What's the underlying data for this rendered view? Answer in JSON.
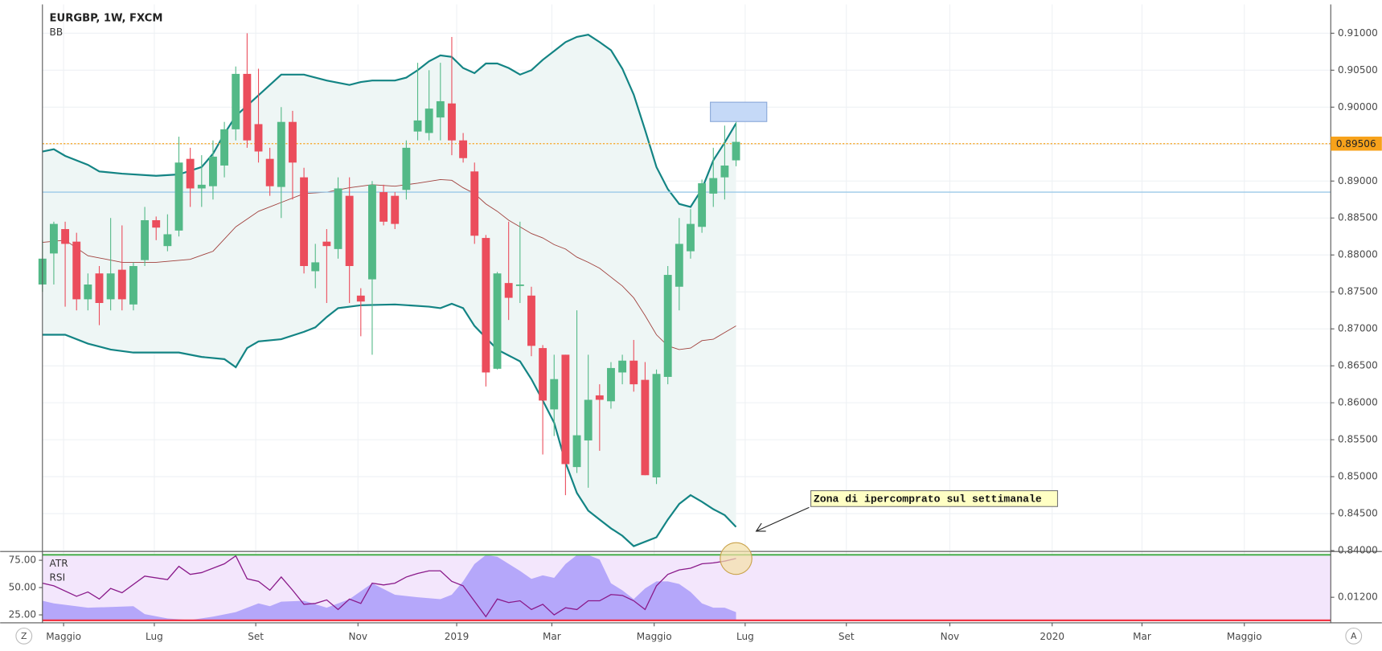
{
  "chart_data": [
    {
      "type": "candlestick",
      "title": "EURGBP, 1W, FXCM",
      "indicator_label": "BB",
      "x": [
        0,
        1,
        2,
        3,
        4,
        5,
        6,
        7,
        8,
        9,
        10,
        11,
        12,
        13,
        14,
        15,
        16,
        17,
        18,
        19,
        20,
        21,
        22,
        23,
        24,
        25,
        26,
        27,
        28,
        29,
        30,
        31,
        32,
        33,
        34,
        35,
        36,
        37,
        38,
        39,
        40,
        41,
        42,
        43,
        44,
        45,
        46,
        47,
        48,
        49,
        50,
        51,
        52,
        53,
        54,
        55,
        56,
        57,
        58,
        59,
        60,
        61
      ],
      "open": [
        0.876,
        0.8802,
        0.8835,
        0.8818,
        0.874,
        0.8775,
        0.874,
        0.878,
        0.8733,
        0.8793,
        0.8847,
        0.8812,
        0.8833,
        0.893,
        0.889,
        0.8893,
        0.8921,
        0.897,
        0.9045,
        0.8977,
        0.893,
        0.8892,
        0.898,
        0.8905,
        0.8778,
        0.8818,
        0.8808,
        0.888,
        0.8745,
        0.8767,
        0.8885,
        0.888,
        0.8888,
        0.8967,
        0.8965,
        0.8986,
        0.9005,
        0.8955,
        0.8913,
        0.8823,
        0.8646,
        0.8762,
        0.8758,
        0.8745,
        0.8674,
        0.8591,
        0.8665,
        0.8513,
        0.8549,
        0.861,
        0.8602,
        0.8641,
        0.8657,
        0.8631,
        0.8499,
        0.8635,
        0.8757,
        0.8805,
        0.8838,
        0.8883,
        0.8905,
        0.8928
      ],
      "high": [
        0.882,
        0.8845,
        0.8845,
        0.883,
        0.8775,
        0.8785,
        0.885,
        0.884,
        0.879,
        0.8865,
        0.8852,
        0.8855,
        0.896,
        0.8945,
        0.8935,
        0.8955,
        0.898,
        0.9055,
        0.91,
        0.9052,
        0.8945,
        0.9,
        0.8995,
        0.8918,
        0.8815,
        0.8835,
        0.8905,
        0.8905,
        0.8755,
        0.89,
        0.8895,
        0.8885,
        0.8955,
        0.906,
        0.905,
        0.906,
        0.9095,
        0.8965,
        0.8925,
        0.8827,
        0.8777,
        0.8845,
        0.8845,
        0.8757,
        0.8678,
        0.8665,
        0.8665,
        0.8725,
        0.8665,
        0.8625,
        0.8655,
        0.8665,
        0.8685,
        0.8655,
        0.8645,
        0.8785,
        0.885,
        0.8862,
        0.8902,
        0.8945,
        0.8975,
        0.8985
      ],
      "low": [
        0.875,
        0.876,
        0.873,
        0.8725,
        0.8725,
        0.8705,
        0.8725,
        0.8725,
        0.8725,
        0.8785,
        0.882,
        0.8805,
        0.8825,
        0.8865,
        0.8865,
        0.8875,
        0.8905,
        0.8955,
        0.8945,
        0.8925,
        0.888,
        0.885,
        0.8875,
        0.8775,
        0.8755,
        0.8735,
        0.8795,
        0.8735,
        0.869,
        0.8665,
        0.884,
        0.8835,
        0.8875,
        0.8955,
        0.8955,
        0.8955,
        0.8935,
        0.8925,
        0.8815,
        0.8622,
        0.8645,
        0.8712,
        0.8735,
        0.8663,
        0.853,
        0.8555,
        0.8475,
        0.8505,
        0.8485,
        0.8535,
        0.8592,
        0.8625,
        0.8615,
        0.8502,
        0.849,
        0.8625,
        0.8725,
        0.8795,
        0.883,
        0.8865,
        0.8875,
        0.892
      ],
      "close": [
        0.8795,
        0.8842,
        0.8815,
        0.874,
        0.876,
        0.8735,
        0.8775,
        0.874,
        0.8785,
        0.8847,
        0.8837,
        0.8828,
        0.8925,
        0.889,
        0.8895,
        0.8933,
        0.897,
        0.9045,
        0.8955,
        0.894,
        0.8893,
        0.898,
        0.8925,
        0.8785,
        0.879,
        0.8812,
        0.889,
        0.8785,
        0.8737,
        0.8895,
        0.8845,
        0.8842,
        0.8945,
        0.8982,
        0.8998,
        0.9008,
        0.8955,
        0.8931,
        0.8826,
        0.8641,
        0.8775,
        0.8742,
        0.876,
        0.8677,
        0.8603,
        0.8632,
        0.8517,
        0.8556,
        0.8604,
        0.8604,
        0.8647,
        0.8657,
        0.8625,
        0.8502,
        0.8639,
        0.8773,
        0.8815,
        0.8842,
        0.8897,
        0.8904,
        0.8921,
        0.8953
      ],
      "up_color": "#53b987",
      "down_color": "#eb4d5c",
      "bands": {
        "color": "#138484",
        "fill": "#eef6f5",
        "middle_color": "#a0403c",
        "upper": {
          "x": [
            0,
            1,
            2,
            4,
            5,
            7,
            10,
            12,
            14,
            15,
            16,
            17,
            18,
            19,
            20,
            21,
            23,
            25,
            26,
            27,
            28,
            29,
            31,
            32,
            33,
            34,
            35,
            36,
            37,
            38,
            39,
            40,
            41,
            42,
            43,
            44,
            45,
            46,
            47,
            48,
            49,
            50,
            51,
            52,
            53,
            54,
            55,
            56,
            57,
            58,
            59,
            60,
            61
          ],
          "values": [
            0.894,
            0.8943,
            0.8934,
            0.8922,
            0.8913,
            0.891,
            0.8907,
            0.8909,
            0.8919,
            0.8937,
            0.8964,
            0.8988,
            0.9002,
            0.9016,
            0.903,
            0.9044,
            0.9044,
            0.9036,
            0.9033,
            0.903,
            0.9034,
            0.9036,
            0.9036,
            0.904,
            0.905,
            0.9062,
            0.907,
            0.9068,
            0.9053,
            0.9046,
            0.9059,
            0.9059,
            0.9053,
            0.9044,
            0.905,
            0.9064,
            0.9076,
            0.9088,
            0.9095,
            0.9098,
            0.9088,
            0.9077,
            0.9052,
            0.9017,
            0.8969,
            0.8919,
            0.8889,
            0.8869,
            0.8865,
            0.8889,
            0.8928,
            0.8952,
            0.8978
          ]
        },
        "middle": {
          "x": [
            0,
            2,
            4,
            7,
            10,
            13,
            15,
            17,
            19,
            21,
            23,
            25,
            27,
            29,
            31,
            33,
            35,
            36,
            37,
            38,
            39,
            40,
            41,
            42,
            43,
            44,
            45,
            46,
            47,
            48,
            49,
            50,
            51,
            52,
            53,
            54,
            55,
            56,
            57,
            58,
            59,
            60,
            61
          ],
          "values": [
            0.8817,
            0.882,
            0.8799,
            0.879,
            0.879,
            0.8794,
            0.8805,
            0.8838,
            0.8859,
            0.8871,
            0.8883,
            0.8885,
            0.8891,
            0.8895,
            0.8893,
            0.8897,
            0.8902,
            0.8901,
            0.8891,
            0.8883,
            0.8869,
            0.8859,
            0.8847,
            0.8838,
            0.8829,
            0.8823,
            0.8814,
            0.8808,
            0.8797,
            0.879,
            0.8782,
            0.877,
            0.8758,
            0.8742,
            0.8718,
            0.8692,
            0.8677,
            0.8672,
            0.8674,
            0.8684,
            0.8686,
            0.8695,
            0.8704
          ]
        },
        "lower": {
          "x": [
            0,
            2,
            4,
            6,
            8,
            12,
            14,
            16,
            17,
            18,
            19,
            21,
            23,
            24,
            25,
            26,
            28,
            31,
            34,
            35,
            36,
            37,
            38,
            40,
            42,
            43,
            44,
            45,
            46,
            47,
            48,
            49,
            50,
            51,
            52,
            54,
            55,
            56,
            57,
            58,
            59,
            60,
            61
          ],
          "values": [
            0.8692,
            0.8692,
            0.868,
            0.8672,
            0.8668,
            0.8668,
            0.8662,
            0.8659,
            0.8648,
            0.8674,
            0.8683,
            0.8686,
            0.8696,
            0.8702,
            0.8716,
            0.8728,
            0.8732,
            0.8733,
            0.873,
            0.8728,
            0.8734,
            0.8728,
            0.8704,
            0.8672,
            0.8656,
            0.8632,
            0.8603,
            0.8573,
            0.8519,
            0.8478,
            0.8454,
            0.8442,
            0.843,
            0.842,
            0.8406,
            0.8418,
            0.8442,
            0.8463,
            0.8475,
            0.8466,
            0.8456,
            0.8448,
            0.8432
          ]
        }
      },
      "hlines": [
        {
          "value": 0.8885,
          "color": "#9cc9e8"
        },
        {
          "value": 0.89506,
          "label": "0.89506",
          "color": "#f7a21b",
          "dotted": true
        }
      ],
      "annotation": "Zona di ipercomprato sul settimanale",
      "xlim": [
        0,
        113.3
      ],
      "xticks": [
        {
          "value": 1.86,
          "label": "Maggio"
        },
        {
          "value": 9.84,
          "label": "Lug"
        },
        {
          "value": 18.76,
          "label": "Set"
        },
        {
          "value": 27.75,
          "label": "Nov"
        },
        {
          "value": 36.43,
          "label": "2019"
        },
        {
          "value": 44.8,
          "label": "Mar"
        },
        {
          "value": 53.8,
          "label": "Maggio"
        },
        {
          "value": 61.8,
          "label": "Lug"
        },
        {
          "value": 70.7,
          "label": "Set"
        },
        {
          "value": 79.8,
          "label": "Nov"
        },
        {
          "value": 88.8,
          "label": "2020"
        },
        {
          "value": 96.7,
          "label": "Mar"
        },
        {
          "value": 105.7,
          "label": "Maggio"
        }
      ],
      "ylim": [
        0.84,
        0.9139
      ],
      "yticks": [
        {
          "value": 0.84,
          "label": "0.84000"
        },
        {
          "value": 0.845,
          "label": "0.84500"
        },
        {
          "value": 0.85,
          "label": "0.85000"
        },
        {
          "value": 0.855,
          "label": "0.85500"
        },
        {
          "value": 0.86,
          "label": "0.86000"
        },
        {
          "value": 0.865,
          "label": "0.86500"
        },
        {
          "value": 0.87,
          "label": "0.87000"
        },
        {
          "value": 0.875,
          "label": "0.87500"
        },
        {
          "value": 0.88,
          "label": "0.88000"
        },
        {
          "value": 0.885,
          "label": "0.88500"
        },
        {
          "value": 0.89,
          "label": "0.89000"
        },
        {
          "value": 0.895,
          "label": "0.89500"
        },
        {
          "value": 0.9,
          "label": "0.90000"
        },
        {
          "value": 0.905,
          "label": "0.90500"
        },
        {
          "value": 0.91,
          "label": "0.91000"
        }
      ],
      "grid": true
    },
    {
      "type": "line",
      "xlim": [
        0,
        113.3
      ],
      "band_fill": "#f3e6fc",
      "ylim": [
        19.35,
        81.45
      ],
      "yticks": [
        {
          "value": 25,
          "label": "25.00"
        },
        {
          "value": 50,
          "label": "50.00"
        },
        {
          "value": 75,
          "label": "75.00"
        }
      ],
      "y2lim": [
        0.01098,
        0.01389
      ],
      "y2ticks": [
        {
          "value": 0.012,
          "label": "0.01200"
        }
      ],
      "hlines": [
        {
          "value": 80,
          "color": "#4caf50"
        },
        {
          "value": 20,
          "color": "#f23645"
        }
      ],
      "series": [
        {
          "name": "ATR",
          "color": "#a99bf9",
          "axis": "y2",
          "fill": true,
          "x": [
            0,
            1,
            4,
            8,
            9,
            11,
            13,
            15,
            17,
            19,
            20,
            21,
            23,
            25,
            27,
            29,
            31,
            33,
            35,
            36,
            37,
            38,
            39,
            40,
            42,
            43,
            44,
            45,
            46,
            47,
            48,
            49,
            50,
            51,
            52,
            53,
            54,
            55,
            56,
            57,
            58,
            59,
            60,
            61
          ],
          "values": [
            0.01185,
            0.01174,
            0.01155,
            0.01162,
            0.01128,
            0.01109,
            0.01102,
            0.01117,
            0.01136,
            0.01174,
            0.01162,
            0.01181,
            0.01185,
            0.01155,
            0.01192,
            0.0126,
            0.01211,
            0.012,
            0.01192,
            0.01211,
            0.01268,
            0.01343,
            0.01381,
            0.01374,
            0.01313,
            0.01279,
            0.01294,
            0.01283,
            0.01343,
            0.01381,
            0.01381,
            0.01362,
            0.0126,
            0.0123,
            0.01192,
            0.01238,
            0.01268,
            0.01268,
            0.01257,
            0.01223,
            0.01174,
            0.01155,
            0.01155,
            0.01136
          ]
        },
        {
          "name": "RSI",
          "color": "#8a1a8a",
          "x": [
            0,
            1,
            3,
            4,
            5,
            6,
            7,
            9,
            11,
            12,
            13,
            14,
            16,
            17,
            18,
            19,
            20,
            21,
            22,
            23,
            24,
            25,
            26,
            27,
            28,
            29,
            30,
            31,
            32,
            33,
            34,
            35,
            36,
            37,
            39,
            40,
            41,
            42,
            43,
            44,
            45,
            46,
            47,
            48,
            49,
            50,
            51,
            52,
            53,
            54,
            55,
            56,
            57,
            58,
            59,
            60,
            61
          ],
          "values": [
            54.0,
            51.6,
            42.0,
            46.0,
            39.5,
            49.2,
            45.2,
            60.5,
            57.3,
            69.4,
            62.1,
            63.7,
            71.8,
            79.0,
            58.1,
            55.7,
            47.6,
            59.7,
            47.6,
            34.7,
            35.5,
            38.7,
            29.9,
            39.5,
            35.5,
            54.0,
            52.4,
            54.0,
            59.7,
            62.9,
            65.3,
            65.3,
            55.7,
            51.6,
            23.4,
            39.5,
            36.3,
            37.9,
            29.9,
            34.7,
            25.0,
            31.5,
            29.9,
            37.9,
            37.9,
            43.6,
            42.8,
            37.9,
            29.9,
            51.6,
            62.1,
            66.1,
            67.7,
            71.8,
            72.6,
            74.2,
            76.6
          ]
        }
      ]
    }
  ],
  "ui": {
    "left_button": "Z",
    "right_button": "A"
  }
}
